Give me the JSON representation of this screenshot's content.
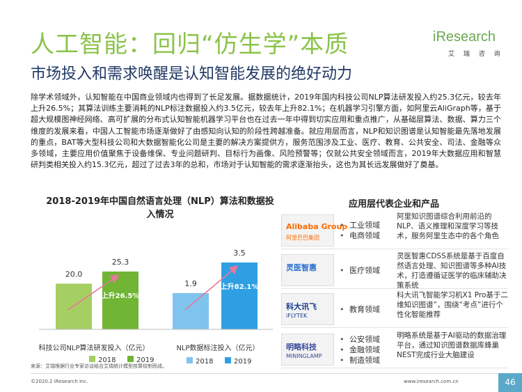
{
  "header": {
    "title": "人工智能：回归“仿生学”本质",
    "subtitle": "市场投入和需求唤醒是认知智能发展的绝好动力",
    "logo_brand": "iResearch",
    "logo_sub": "艾 瑞 咨 询"
  },
  "body_text": "除学术领域外，认知智能在中国商业领域内也得到了长足发展。据数据统计，2019年国内科技公司NLP算法研发投入约25.3亿元，较去年上升26.5%；其算法训练主要消耗的NLP标注数据投入约3.5亿元，较去年上升82.1%；在机器学习引擎方面，如阿里云AliGraph等，基于超大规模图神经网络、高可扩展的分布式认知智能机器学习平台也在过去一年中得到切实应用和重点推广，从基础层算法、数据、算力三个维度的发展来看，中国人工智能市场逐渐做好了由感知向认知的阶段性跨越准备。就应用层而言，NLP和知识图谱是认知智能最先落地发展的重点，BAT等大型科技公司和大数据智能化公司是主要的解决方案提供方，服务范围涉及工业、医疗、教育、公共安全、司法、金融等众多领域，主要应用价值聚焦于设备维保、专业问题研判、目标行为画像、风险预警等；仅就公共安全领域而言，2019年大数据应用和智慧研判类相关投入约15.3亿元，超过了过去3年的总和，市场对于认知智能的需求逐渐抬头，这也为其长远发展做好了奠基。",
  "chart_data": {
    "type": "bar",
    "title": "2018-2019年中国自然语言处理（NLP）算法和数据投入情况",
    "groups": [
      {
        "label": "科技公司NLP算法研发投入（亿元）",
        "series": [
          {
            "name": "2018",
            "value": 20.0,
            "value_label": "20.0"
          },
          {
            "name": "2019",
            "value": 25.3,
            "value_label": "25.3"
          }
        ],
        "growth_label": "上升26.5%",
        "legend": [
          "2018",
          "2019"
        ]
      },
      {
        "label": "NLP数据标注投入（亿元）",
        "series": [
          {
            "name": "2018",
            "value": 1.9,
            "value_label": "1.9"
          },
          {
            "name": "2019",
            "value": 3.5,
            "value_label": "3.5"
          }
        ],
        "growth_label": "上升82.1%",
        "legend": [
          "2018",
          "2019"
        ]
      }
    ],
    "colors": {
      "group1_2018": "#a5cf63",
      "group1_2019": "#70b533",
      "group2_2018": "#7fc4ee",
      "group2_2019": "#2f9fe3",
      "arrow": "#e8779b"
    }
  },
  "apps": {
    "title": "应用层代表企业和产品",
    "rows": [
      {
        "icon": "alibaba-logo",
        "logo_label": "Alibaba Group",
        "logo_sub": "阿里巴巴集团",
        "logo_color": "#ff6a00",
        "fields": [
          "工业领域",
          "电商领域"
        ],
        "desc": "阿里知识图谱综合利用前沿的NLP、语义推理和深度学习等技术，服务阿里生态中的各个角色"
      },
      {
        "icon": "lingyi-logo",
        "logo_label": "灵医智惠",
        "logo_sub": "",
        "logo_color": "#2a6fcf",
        "fields": [
          "医疗领域"
        ],
        "desc": "灵医智惠CDSS系统是基于百度自然语言处理、知识图谱等多种AI技术，打造遵循证医学的临床辅助决策系统"
      },
      {
        "icon": "iflytek-logo",
        "logo_label": "科大讯飞",
        "logo_sub": "iFLYTEK",
        "logo_color": "#1a3d8f",
        "fields": [
          "教育领域"
        ],
        "desc": "科大讯飞智能学习机X1 Pro基于二维知识图谱”，围绕“考点”进行个性化智能推荐"
      },
      {
        "icon": "minglue-logo",
        "logo_label": "明略科技",
        "logo_sub": "MININGLAMP",
        "logo_color": "#3b4a9b",
        "fields": [
          "公安领域",
          "金融领域",
          "制造领域"
        ],
        "desc": "明略系统是基于AI驱动的数据治理平台，通过知识图谱数据库蜂巢NEST完成行业大脑建设"
      }
    ]
  },
  "source": "来源：艾瑞根据行业专家访谈结合艾瑞统计模型核算绘制而成。",
  "footer": {
    "copyright": "©2020.2 iResearch Inc.",
    "website": "www.iresearch.com.cn",
    "page": "46"
  }
}
